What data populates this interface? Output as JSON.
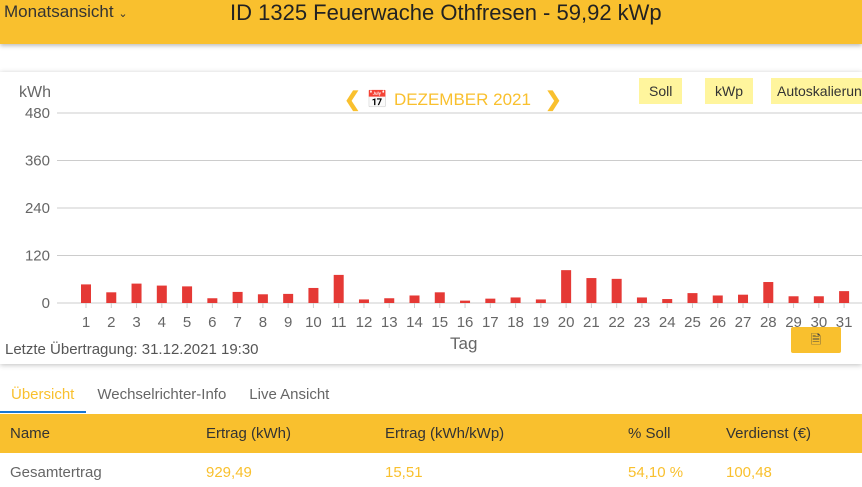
{
  "header": {
    "view_select": "Monatsansicht",
    "title": "ID 1325 Feuerwache Othfresen - 59,92 kWp"
  },
  "chart_controls": {
    "month": "DEZEMBER 2021",
    "buttons": [
      "Soll",
      "kWp",
      "Autoskalierung"
    ]
  },
  "footer": {
    "last_transfer": "Letzte Übertragung: 31.12.2021 19:30"
  },
  "tabs": [
    "Übersicht",
    "Wechselrichter-Info",
    "Live Ansicht"
  ],
  "table": {
    "headers": [
      "Name",
      "Ertrag (kWh)",
      "Ertrag (kWh/kWp)",
      "% Soll",
      "Verdienst (€)"
    ],
    "rows": [
      [
        "Gesamtertrag",
        "929,49",
        "15,51",
        "54,10 %",
        "100,48"
      ]
    ]
  },
  "colors": {
    "accent": "#f9c02e",
    "bar": "#e53935"
  },
  "chart_data": {
    "type": "bar",
    "ylabel": "kWh",
    "xlabel": "Tag",
    "ylim": [
      0,
      480
    ],
    "yticks": [
      0,
      120,
      240,
      360,
      480
    ],
    "grid": true,
    "categories": [
      "1",
      "2",
      "3",
      "4",
      "5",
      "6",
      "7",
      "8",
      "9",
      "10",
      "11",
      "12",
      "13",
      "14",
      "15",
      "16",
      "17",
      "18",
      "19",
      "20",
      "21",
      "22",
      "23",
      "24",
      "25",
      "26",
      "27",
      "28",
      "29",
      "30",
      "31"
    ],
    "values": [
      47,
      27,
      49,
      44,
      42,
      12,
      28,
      22,
      23,
      38,
      71,
      9,
      12,
      19,
      27,
      6,
      11,
      14,
      9,
      83,
      63,
      61,
      14,
      10,
      25,
      19,
      21,
      53,
      17,
      17,
      30
    ]
  }
}
